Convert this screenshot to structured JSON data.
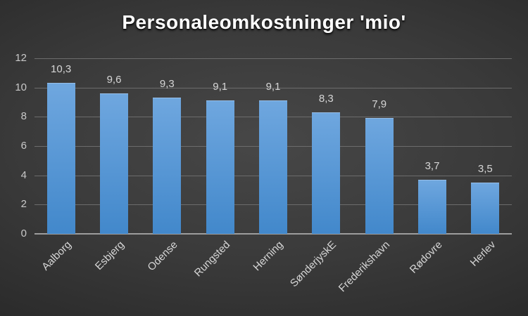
{
  "chart_data": {
    "type": "bar",
    "title": "Personaleomkostninger 'mio'",
    "categories": [
      "Aalborg",
      "Esbjerg",
      "Odense",
      "Rungsted",
      "Herning",
      "SønderjyskE",
      "Frederikshavn",
      "Rødovre",
      "Herlev"
    ],
    "values": [
      10.3,
      9.6,
      9.3,
      9.1,
      9.1,
      8.3,
      7.9,
      3.7,
      3.5
    ],
    "value_labels": [
      "10,3",
      "9,6",
      "9,3",
      "9,1",
      "9,1",
      "8,3",
      "7,9",
      "3,7",
      "3,5"
    ],
    "xlabel": "",
    "ylabel": "",
    "ylim": [
      0,
      12
    ],
    "yticks": [
      0,
      2,
      4,
      6,
      8,
      10,
      12
    ],
    "grid": true,
    "legend": "none",
    "x_tick_rotation_deg": -45,
    "decimal_separator": ","
  },
  "style": {
    "title_color": "#ffffff",
    "bar_gradient_top": "#6FA7DF",
    "bar_gradient_bottom": "#4288CB",
    "gridline_color": "#6c6c6c",
    "axis_line_color": "#9d9d9d",
    "tick_label_color": "#c9c9c9",
    "data_label_color": "#d6d6d6",
    "background_center": "#474747",
    "background_mid": "#2b2b2b",
    "background_edge": "#222222"
  }
}
